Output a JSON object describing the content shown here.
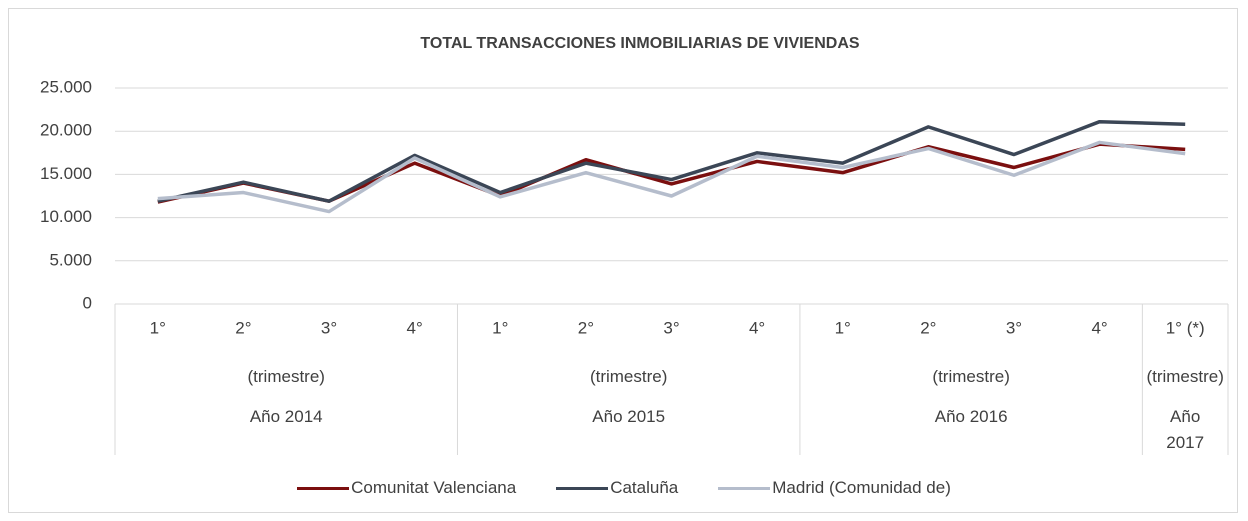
{
  "chart_data": {
    "type": "line",
    "title": "TOTAL TRANSACCIONES INMOBILIARIAS DE VIVIENDAS",
    "category_groups": [
      {
        "name": "Año 2014",
        "sublabel": "(trimestre)",
        "categories": [
          "1°",
          "2°",
          "3°",
          "4°"
        ]
      },
      {
        "name": "Año 2015",
        "sublabel": "(trimestre)",
        "categories": [
          "1°",
          "2°",
          "3°",
          "4°"
        ]
      },
      {
        "name": "Año 2016",
        "sublabel": "(trimestre)",
        "categories": [
          "1°",
          "2°",
          "3°",
          "4°"
        ]
      },
      {
        "name": "Año 2017",
        "sublabel": "(trimestre)",
        "categories": [
          "1° (*)"
        ]
      }
    ],
    "series": [
      {
        "name": "Comunitat Valenciana",
        "color": "#7b0f0f",
        "values": [
          11800,
          14000,
          11900,
          16300,
          12500,
          16700,
          13900,
          16500,
          15200,
          18200,
          15800,
          18500,
          17900
        ]
      },
      {
        "name": "Cataluña",
        "color": "#3b4656",
        "values": [
          11900,
          14100,
          11900,
          17200,
          12900,
          16300,
          14400,
          17500,
          16300,
          20500,
          17300,
          21100,
          20800
        ]
      },
      {
        "name": "Madrid (Comunidad de)",
        "color": "#b5bdcc",
        "values": [
          12200,
          12900,
          10700,
          16900,
          12400,
          15200,
          12500,
          17100,
          15800,
          18000,
          14900,
          18700,
          17400
        ]
      }
    ],
    "ylim": [
      0,
      25000
    ],
    "yticks": [
      0,
      {
        "value": 5000,
        "label": "5.000"
      },
      {
        "value": 10000,
        "label": "10.000"
      },
      {
        "value": 15000,
        "label": "15.000"
      },
      {
        "value": 20000,
        "label": "20.000"
      },
      {
        "value": 25000,
        "label": "25.000"
      }
    ],
    "grid": true
  }
}
